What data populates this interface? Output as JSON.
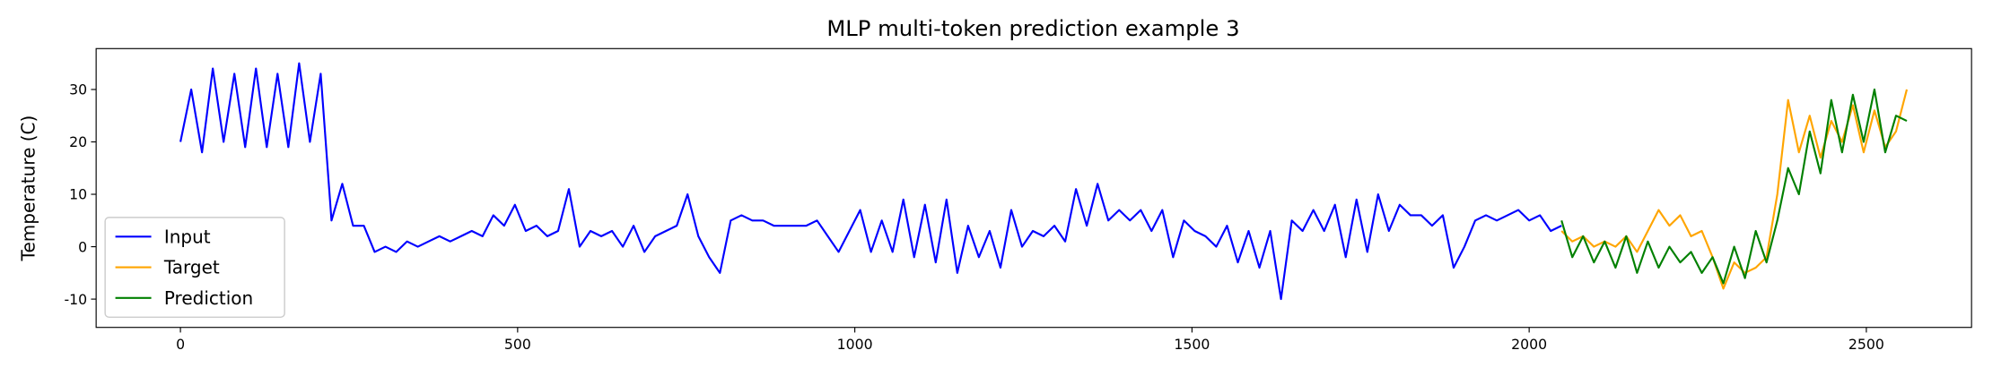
{
  "chart_data": {
    "type": "line",
    "title": "MLP multi-token prediction example 3",
    "y_label": "Temperature (C)",
    "xlim": [
      -125,
      2656
    ],
    "ylim": [
      -15.4,
      37.8
    ],
    "xticks": [
      0,
      500,
      1000,
      1500,
      2000,
      2500
    ],
    "yticks": [
      -10,
      0,
      10,
      20,
      30
    ],
    "legend_position": "lower left",
    "grid": false,
    "series": [
      {
        "name": "Input",
        "color": "#0000ff",
        "x": [
          0,
          16,
          32,
          48,
          64,
          80,
          96,
          112,
          128,
          144,
          160,
          176,
          192,
          208,
          224,
          240,
          256,
          272,
          288,
          304,
          320,
          336,
          352,
          368,
          384,
          400,
          416,
          432,
          448,
          464,
          480,
          496,
          512,
          528,
          544,
          560,
          576,
          592,
          608,
          624,
          640,
          656,
          672,
          688,
          704,
          720,
          736,
          752,
          768,
          784,
          800,
          816,
          832,
          848,
          864,
          880,
          896,
          912,
          928,
          944,
          960,
          976,
          992,
          1008,
          1024,
          1040,
          1056,
          1072,
          1088,
          1104,
          1120,
          1136,
          1152,
          1168,
          1184,
          1200,
          1216,
          1232,
          1248,
          1264,
          1280,
          1296,
          1312,
          1328,
          1344,
          1360,
          1376,
          1392,
          1408,
          1424,
          1440,
          1456,
          1472,
          1488,
          1504,
          1520,
          1536,
          1552,
          1568,
          1584,
          1600,
          1616,
          1632,
          1648,
          1664,
          1680,
          1696,
          1712,
          1728,
          1744,
          1760,
          1776,
          1792,
          1808,
          1824,
          1840,
          1856,
          1872,
          1888,
          1904,
          1920,
          1936,
          1952,
          1968,
          1984,
          2000,
          2016,
          2032,
          2048
        ],
        "values": [
          20,
          30,
          18,
          34,
          20,
          33,
          19,
          34,
          19,
          33,
          19,
          35,
          20,
          33,
          5,
          12,
          4,
          4,
          -1,
          0,
          -1,
          1,
          0,
          1,
          2,
          1,
          2,
          3,
          2,
          6,
          4,
          8,
          3,
          4,
          2,
          3,
          11,
          0,
          3,
          2,
          3,
          0,
          4,
          -1,
          2,
          3,
          4,
          10,
          2,
          -2,
          -5,
          5,
          6,
          5,
          5,
          4,
          4,
          4,
          4,
          5,
          2,
          -1,
          3,
          7,
          -1,
          5,
          -1,
          9,
          -2,
          8,
          -3,
          9,
          -5,
          4,
          -2,
          3,
          -4,
          7,
          0,
          3,
          2,
          4,
          1,
          11,
          4,
          12,
          5,
          7,
          5,
          7,
          3,
          7,
          -2,
          5,
          3,
          2,
          0,
          4,
          -3,
          3,
          -4,
          3,
          -10,
          5,
          3,
          7,
          3,
          8,
          -2,
          9,
          -1,
          10,
          3,
          8,
          6,
          6,
          4,
          6,
          -4,
          0,
          5,
          6,
          5,
          6,
          7,
          5,
          6,
          3,
          4
        ]
      },
      {
        "name": "Target",
        "color": "#ffa500",
        "x": [
          2048,
          2064,
          2080,
          2096,
          2112,
          2128,
          2144,
          2160,
          2176,
          2192,
          2208,
          2224,
          2240,
          2256,
          2272,
          2288,
          2304,
          2320,
          2336,
          2352,
          2368,
          2384,
          2400,
          2416,
          2432,
          2448,
          2464,
          2480,
          2496,
          2512,
          2528,
          2544,
          2560
        ],
        "values": [
          3,
          1,
          2,
          0,
          1,
          0,
          2,
          -1,
          3,
          7,
          4,
          6,
          2,
          3,
          -2,
          -8,
          -3,
          -5,
          -4,
          -2,
          10,
          28,
          18,
          25,
          17,
          24,
          20,
          27,
          18,
          26,
          19,
          22,
          30
        ]
      },
      {
        "name": "Prediction",
        "color": "#008000",
        "x": [
          2048,
          2064,
          2080,
          2096,
          2112,
          2128,
          2144,
          2160,
          2176,
          2192,
          2208,
          2224,
          2240,
          2256,
          2272,
          2288,
          2304,
          2320,
          2336,
          2352,
          2368,
          2384,
          2400,
          2416,
          2432,
          2448,
          2464,
          2480,
          2496,
          2512,
          2528,
          2544,
          2560
        ],
        "values": [
          5,
          -2,
          2,
          -3,
          1,
          -4,
          2,
          -5,
          1,
          -4,
          0,
          -3,
          -1,
          -5,
          -2,
          -7,
          0,
          -6,
          3,
          -3,
          5,
          15,
          10,
          22,
          14,
          28,
          18,
          29,
          20,
          30,
          18,
          25,
          24
        ]
      }
    ]
  }
}
